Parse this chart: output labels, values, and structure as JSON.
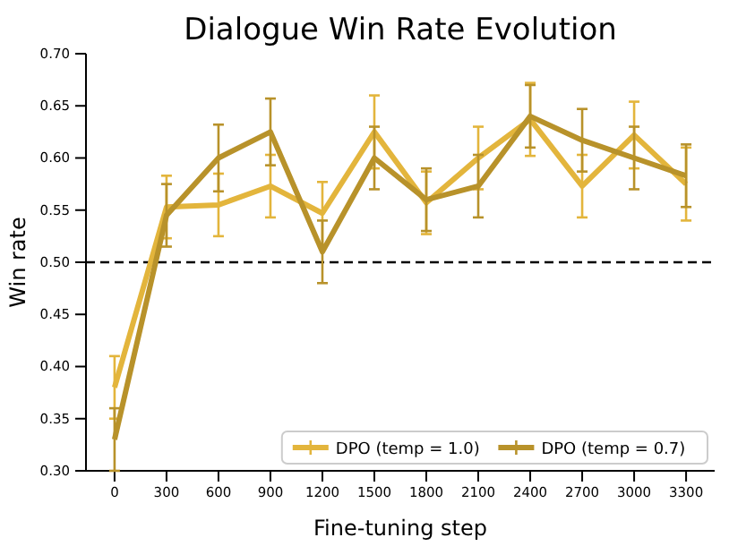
{
  "chart_data": {
    "type": "line",
    "title": "Dialogue Win Rate Evolution",
    "xlabel": "Fine-tuning step",
    "ylabel": "Win rate",
    "x": [
      0,
      300,
      600,
      900,
      1200,
      1500,
      1800,
      2100,
      2400,
      2700,
      3000,
      3300
    ],
    "xlim": [
      -165,
      3465
    ],
    "xticks": [
      0,
      300,
      600,
      900,
      1200,
      1500,
      1800,
      2100,
      2400,
      2700,
      3000,
      3300
    ],
    "ylim": [
      0.3,
      0.7
    ],
    "yticks": [
      {
        "value": 0.3,
        "label": "0.30"
      },
      {
        "value": 0.35,
        "label": "0.35"
      },
      {
        "value": 0.4,
        "label": "0.40"
      },
      {
        "value": 0.45,
        "label": "0.45"
      },
      {
        "value": 0.5,
        "label": "0.50"
      },
      {
        "value": 0.55,
        "label": "0.55"
      },
      {
        "value": 0.6,
        "label": "0.60"
      },
      {
        "value": 0.65,
        "label": "0.65"
      },
      {
        "value": 0.7,
        "label": "0.70"
      }
    ],
    "series": [
      {
        "name": "DPO (temp = 1.0)",
        "color": "#e3b53c",
        "values": [
          0.38,
          0.553,
          0.555,
          0.573,
          0.547,
          0.625,
          0.557,
          0.6,
          0.637,
          0.573,
          0.622,
          0.575
        ],
        "errors": [
          0.03,
          0.03,
          0.03,
          0.03,
          0.03,
          0.035,
          0.03,
          0.03,
          0.035,
          0.03,
          0.032,
          0.035
        ]
      },
      {
        "name": "DPO (temp = 0.7)",
        "color": "#b8922a",
        "values": [
          0.33,
          0.545,
          0.6,
          0.625,
          0.51,
          0.6,
          0.56,
          0.573,
          0.64,
          0.617,
          0.6,
          0.583
        ],
        "errors": [
          0.03,
          0.03,
          0.032,
          0.032,
          0.03,
          0.03,
          0.03,
          0.03,
          0.03,
          0.03,
          0.03,
          0.03
        ]
      }
    ],
    "ref_lines": [
      {
        "axis": "y",
        "value": 0.5,
        "color": "#000000",
        "line_style": "dashed"
      }
    ],
    "legend": "bottom right",
    "marker": "none",
    "line_style": "solid",
    "grid": false
  }
}
